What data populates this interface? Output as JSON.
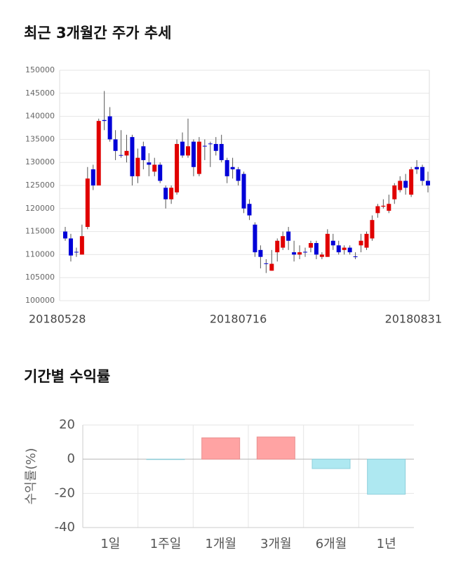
{
  "chart_data": [
    {
      "type": "candlestick",
      "title": "최근 3개월간 주가 추세",
      "categories": [
        "20180528",
        null,
        null,
        null,
        null,
        null,
        null,
        null,
        null,
        null,
        null,
        null,
        null,
        null,
        null,
        null,
        null,
        null,
        null,
        null,
        null,
        null,
        null,
        null,
        null,
        null,
        null,
        null,
        null,
        null,
        null,
        "20180716",
        null,
        null,
        null,
        null,
        null,
        null,
        null,
        null,
        null,
        null,
        null,
        null,
        null,
        null,
        null,
        null,
        null,
        null,
        null,
        null,
        null,
        null,
        null,
        null,
        null,
        null,
        null,
        null,
        null,
        null,
        null,
        null,
        null,
        "20180831"
      ],
      "open": [
        115000,
        113500,
        110600,
        110000,
        116000,
        128500,
        125000,
        139200,
        140000,
        135000,
        131600,
        131500,
        135500,
        127000,
        133500,
        130000,
        128000,
        129500,
        124500,
        122000,
        123500,
        134500,
        131500,
        134500,
        127500,
        133600,
        134100,
        134000,
        134000,
        130500,
        129000,
        128500,
        127500,
        121000,
        116500,
        111000,
        108100,
        106500,
        110500,
        111500,
        115000,
        110500,
        110000,
        110600,
        111500,
        112500,
        109500,
        109500,
        113000,
        112000,
        111000,
        111500,
        109600,
        112000,
        111500,
        113500,
        119000,
        120400,
        119500,
        122000,
        124000,
        126000,
        123000,
        129000,
        129000,
        126000
      ],
      "high": [
        116000,
        114500,
        111500,
        116500,
        129000,
        129500,
        139500,
        145500,
        142000,
        137000,
        137000,
        136000,
        136000,
        133000,
        134500,
        132000,
        131000,
        130000,
        125000,
        125000,
        135000,
        136500,
        139500,
        135000,
        135500,
        135000,
        134500,
        135500,
        136000,
        131000,
        131000,
        129000,
        128000,
        122000,
        117000,
        112000,
        109000,
        111000,
        113500,
        115000,
        116000,
        113000,
        112000,
        111500,
        113000,
        113000,
        110500,
        115500,
        114500,
        113000,
        112000,
        112000,
        110500,
        114500,
        115000,
        118500,
        121000,
        122000,
        123000,
        125500,
        127000,
        127500,
        129000,
        130500,
        129500,
        128000
      ],
      "low": [
        113000,
        108500,
        109500,
        110000,
        115500,
        124000,
        125000,
        137000,
        134500,
        130500,
        131000,
        130000,
        125000,
        125500,
        128500,
        127000,
        127000,
        125500,
        120000,
        121000,
        123000,
        131000,
        131000,
        127000,
        127000,
        130500,
        129000,
        131500,
        130000,
        125500,
        126500,
        125000,
        119000,
        117500,
        109500,
        107000,
        106000,
        106500,
        108500,
        111000,
        111000,
        108500,
        109000,
        109500,
        110500,
        109000,
        109000,
        109500,
        111000,
        110000,
        110000,
        110000,
        109000,
        110500,
        111000,
        113000,
        118000,
        120000,
        119000,
        121000,
        123500,
        123000,
        122500,
        127500,
        125000,
        123500
      ],
      "close": [
        113500,
        109800,
        110500,
        114000,
        126500,
        125000,
        139000,
        139000,
        135000,
        132500,
        131500,
        132500,
        127000,
        131000,
        130500,
        129500,
        129500,
        126000,
        122000,
        124500,
        134000,
        131500,
        133500,
        129000,
        134500,
        133500,
        134000,
        132500,
        130500,
        127000,
        128500,
        126000,
        120000,
        118500,
        110500,
        109500,
        108000,
        108000,
        113000,
        114000,
        113000,
        110000,
        110500,
        110500,
        112500,
        110000,
        110000,
        114500,
        112000,
        110500,
        111500,
        110500,
        109500,
        113000,
        114500,
        117500,
        120500,
        120600,
        121000,
        125000,
        126000,
        124500,
        128500,
        128500,
        126000,
        125000
      ],
      "up_color": "#e00000",
      "down_color": "#0000d8",
      "ylim": [
        100000,
        150000
      ],
      "yticks": [
        100000,
        105000,
        110000,
        115000,
        120000,
        125000,
        130000,
        135000,
        140000,
        145000,
        150000
      ],
      "grid": true
    },
    {
      "type": "bar",
      "title": "기간별 수익률",
      "y_label": "수익률(%)",
      "categories": [
        "1일",
        "1주일",
        "1개월",
        "3개월",
        "6개월",
        "1년"
      ],
      "values": [
        0,
        -0.2,
        12.5,
        13,
        -5.5,
        -20.5
      ],
      "up_color": "#ffa3a3",
      "up_edge": "#e89090",
      "down_color": "#aee8f1",
      "down_edge": "#8fd0dc",
      "ylim": [
        -40,
        20
      ],
      "yticks": [
        -40,
        -20,
        0,
        20
      ],
      "grid": true
    }
  ]
}
